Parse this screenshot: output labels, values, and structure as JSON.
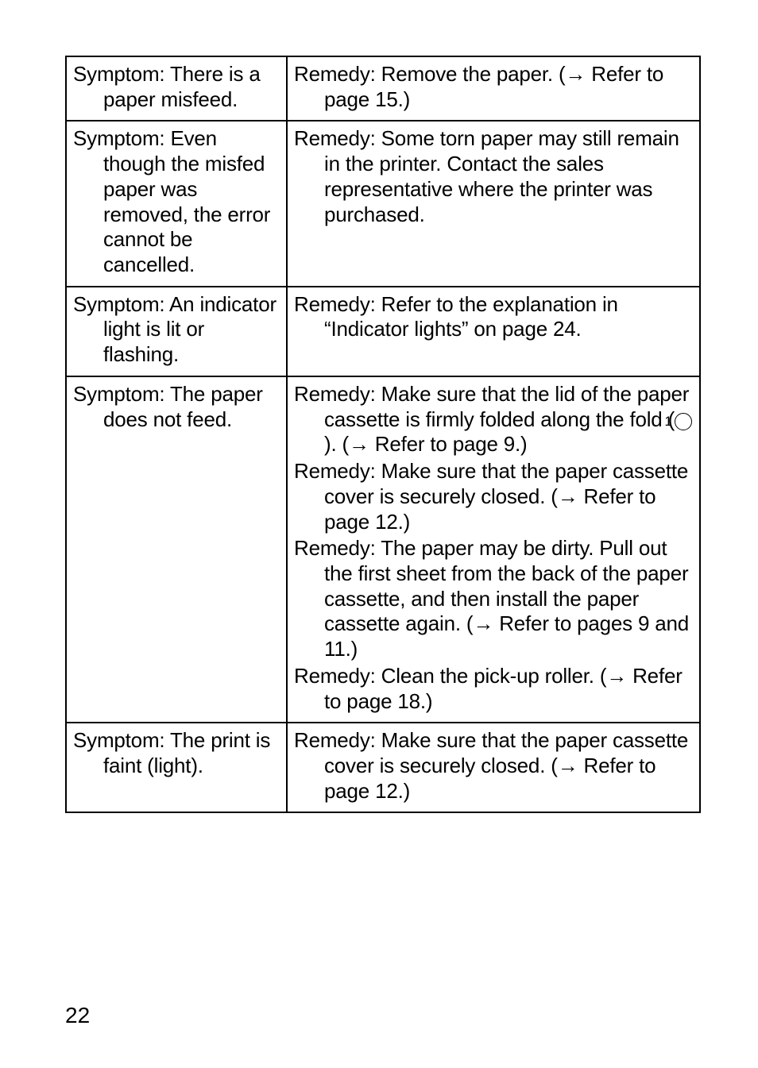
{
  "page_number": "22",
  "rows": [
    {
      "symptom_lines": [
        "Symptom: There is a paper misfeed."
      ],
      "remedy_lines": [
        "Remedy: Remove the paper. (→ Refer to page 15.)"
      ]
    },
    {
      "symptom_lines": [
        "Symptom: Even though the misfed paper was removed, the error cannot be cancelled."
      ],
      "remedy_lines": [
        "Remedy: Some torn paper may still remain in the printer. Contact the sales representative where the printer was purchased."
      ]
    },
    {
      "symptom_lines": [
        "Symptom: An indicator light is lit or flashing."
      ],
      "remedy_lines": [
        "Remedy: Refer to the explanation in “Indicator lights” on page 24."
      ]
    },
    {
      "symptom_lines": [
        "Symptom: The paper does not feed."
      ],
      "remedy_lines": [
        "Remedy: Make sure that the lid of the paper cassette is firmly folded along the fold (CIRCLED1). (→ Refer to page 9.)",
        "Remedy: Make sure that the paper cassette cover is securely closed. (→ Refer to page 12.)",
        "Remedy: The paper may be dirty. Pull out the first sheet from the back of the paper cassette, and then install the paper cassette again. (→ Refer to pages 9 and 11.)",
        "Remedy: Clean the pick-up roller. (→ Refer to page 18.)"
      ]
    },
    {
      "symptom_lines": [
        "Symptom: The print is faint (light)."
      ],
      "remedy_lines": [
        "Remedy: Make sure that the paper cassette cover is securely closed. (→ Refer to page 12.)"
      ]
    }
  ]
}
